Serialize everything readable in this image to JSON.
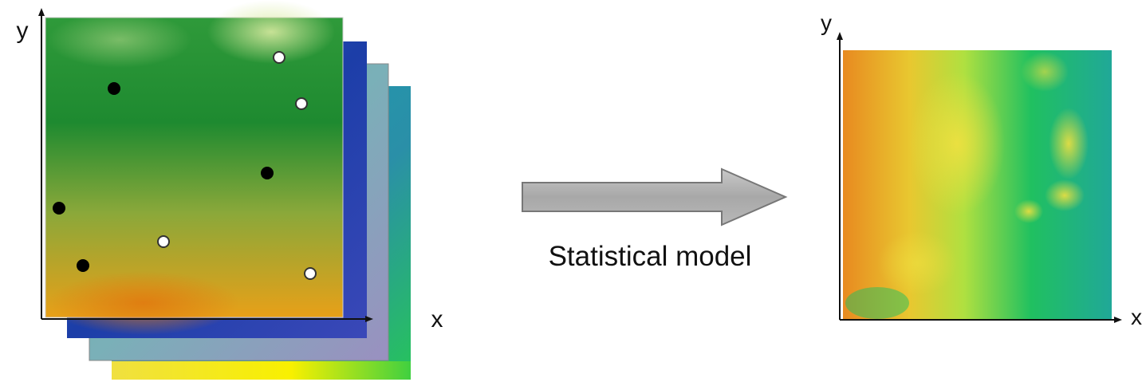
{
  "left_panel": {
    "y_axis_label": "y",
    "x_axis_label": "x"
  },
  "arrow": {
    "label": "Statistical model"
  },
  "right_panel": {
    "y_axis_label": "y",
    "x_axis_label": "x"
  }
}
